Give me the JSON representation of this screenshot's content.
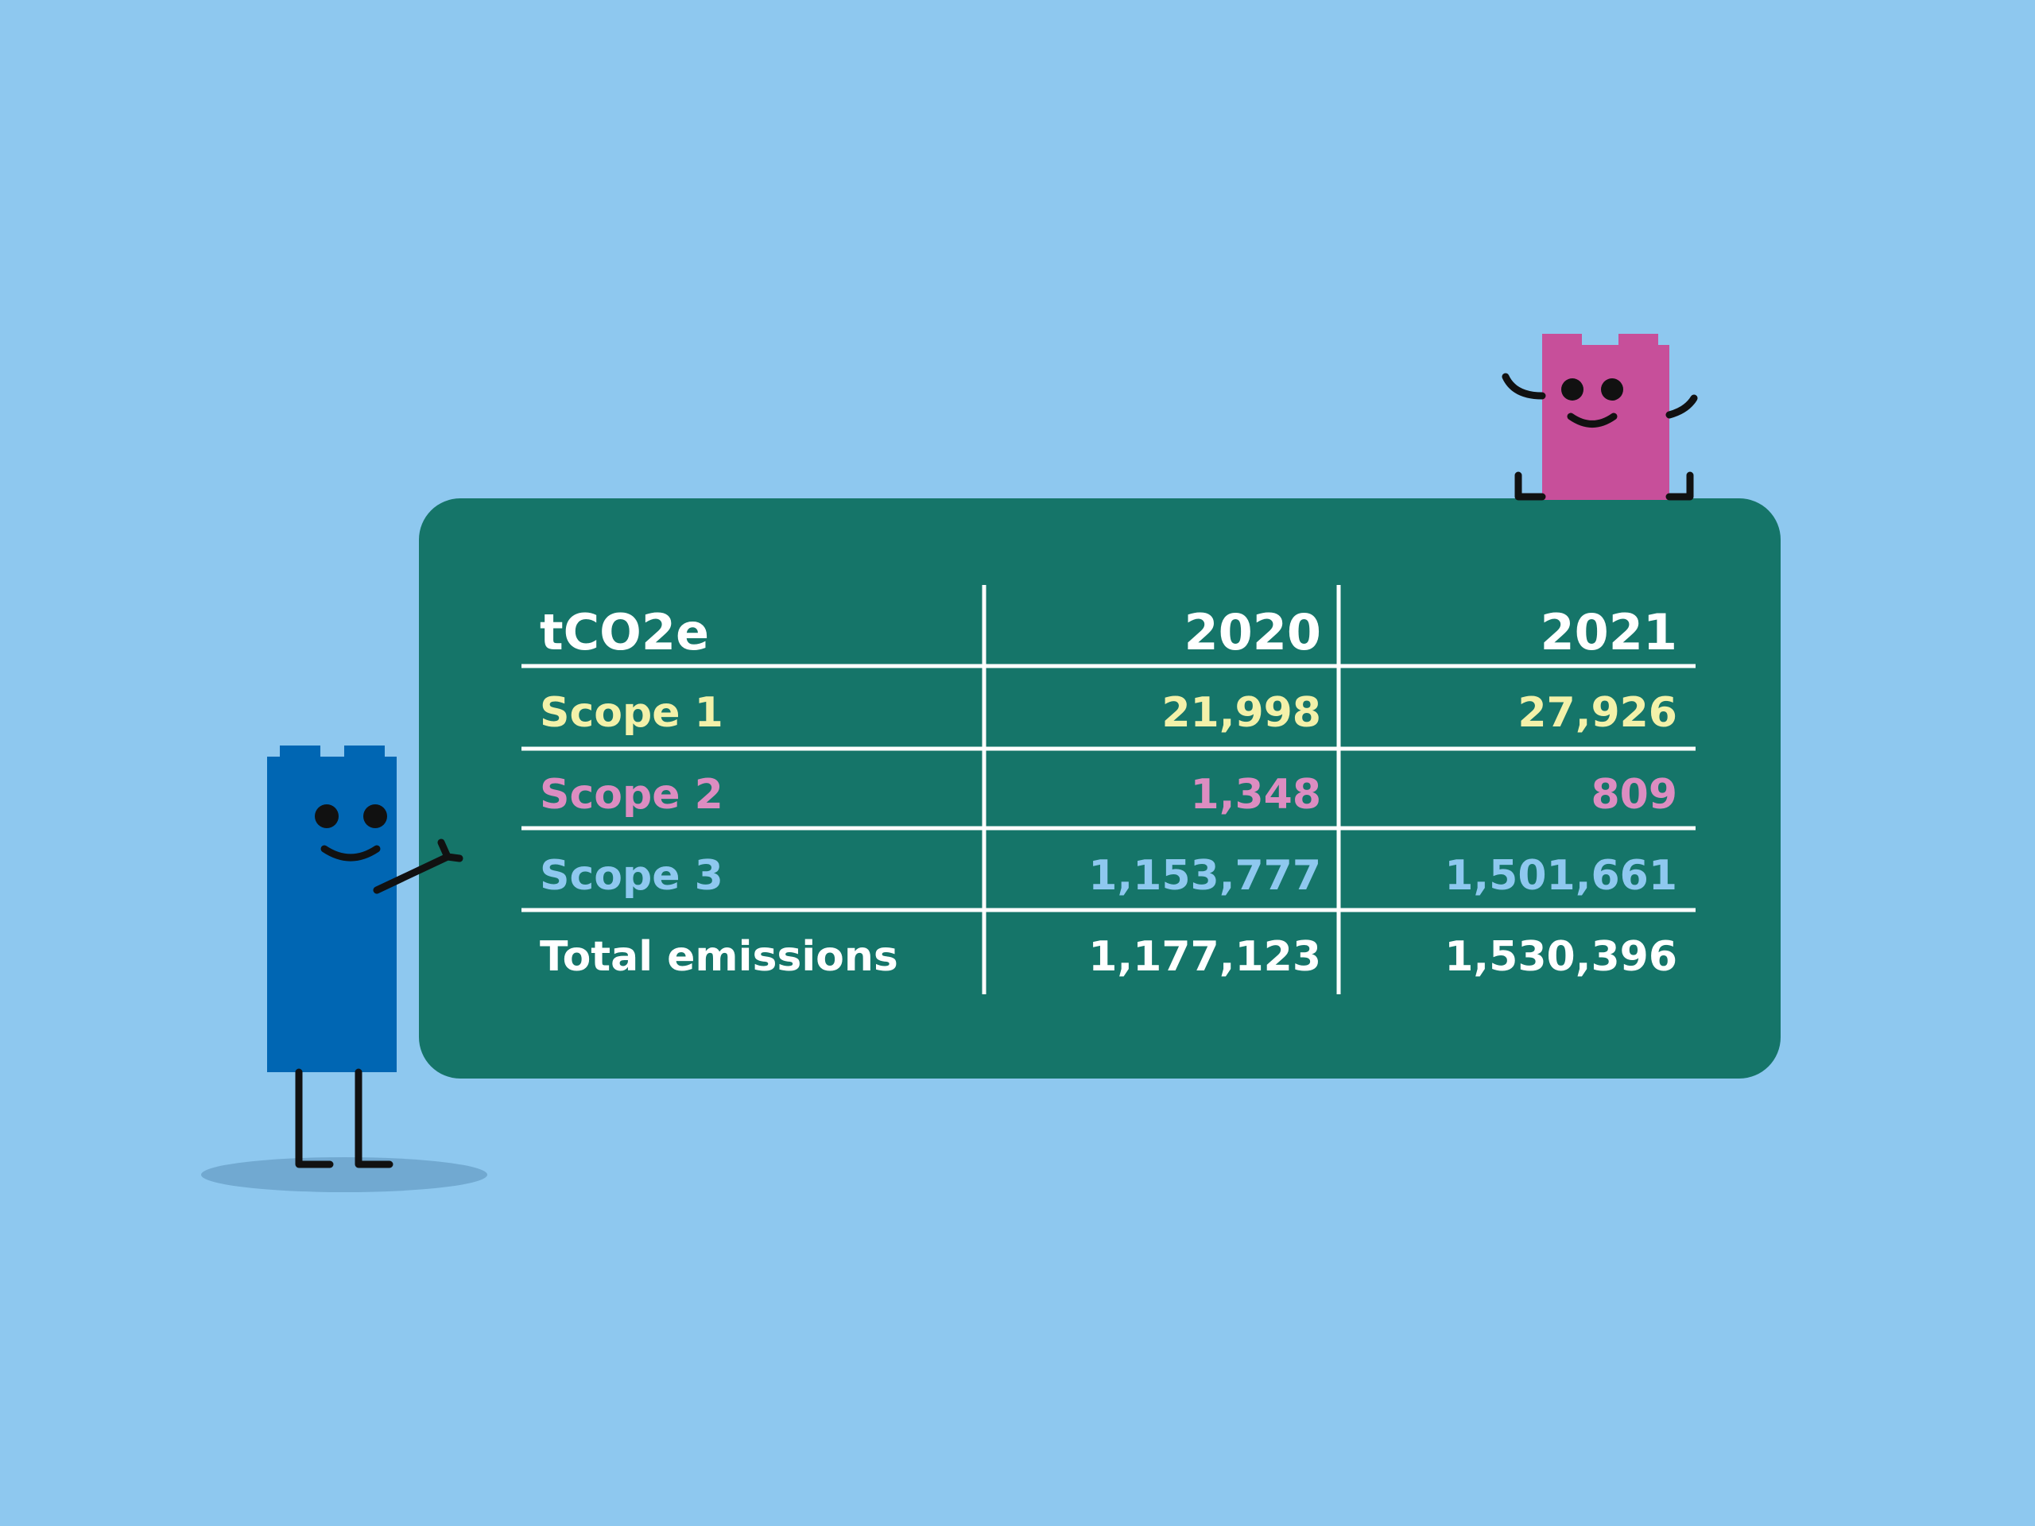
{
  "table": {
    "header": [
      "tCO2e",
      "2020",
      "2021"
    ],
    "rows": [
      [
        "Scope 1",
        "21,998",
        "27,926"
      ],
      [
        "Scope 2",
        "1,348",
        "809"
      ],
      [
        "Scope 3",
        "1,153,777",
        "1,501,661"
      ],
      [
        "Total emissions",
        "1,177,123",
        "1,530,396"
      ]
    ]
  }
}
